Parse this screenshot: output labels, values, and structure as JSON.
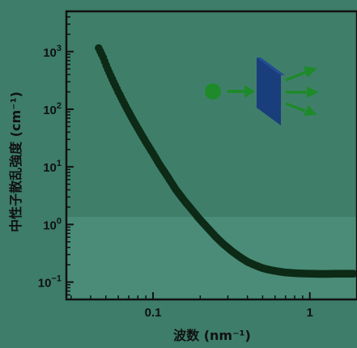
{
  "chart_data": {
    "type": "scatter",
    "title": "",
    "xlabel": "波数 (nm⁻¹)",
    "ylabel": "中性子散乱強度 (cm⁻¹)",
    "x_scale": "log",
    "y_scale": "log",
    "xlim": [
      0.028,
      2.0
    ],
    "ylim": [
      0.05,
      5000
    ],
    "x_ticks": [
      {
        "value": 0.1,
        "label": "0.1"
      },
      {
        "value": 1,
        "label": "1"
      }
    ],
    "y_ticks": [
      {
        "value": 0.1,
        "base": "10",
        "exp": "−1"
      },
      {
        "value": 1,
        "base": "10",
        "exp": "0"
      },
      {
        "value": 10,
        "base": "10",
        "exp": "1"
      },
      {
        "value": 100,
        "base": "10",
        "exp": "2"
      },
      {
        "value": 1000,
        "base": "10",
        "exp": "3"
      }
    ],
    "grid": false,
    "marker_color": "#0d2a17",
    "series": [
      {
        "x": [
          0.045,
          0.048,
          0.051,
          0.055,
          0.06,
          0.066,
          0.073,
          0.081,
          0.09,
          0.1,
          0.11,
          0.125,
          0.14,
          0.16,
          0.18,
          0.2,
          0.225,
          0.25,
          0.28,
          0.32,
          0.36,
          0.4,
          0.45,
          0.5,
          0.56,
          0.63,
          0.7,
          0.8,
          0.9,
          1.0,
          1.15,
          1.3,
          1.5,
          1.7,
          1.9
        ],
        "y": [
          1150,
          800,
          520,
          330,
          200,
          120,
          72,
          44,
          27,
          17,
          11,
          6.5,
          4.0,
          2.5,
          1.7,
          1.2,
          0.85,
          0.62,
          0.46,
          0.34,
          0.27,
          0.225,
          0.195,
          0.175,
          0.162,
          0.153,
          0.147,
          0.143,
          0.141,
          0.14,
          0.139,
          0.139,
          0.14,
          0.14,
          0.14
        ]
      }
    ]
  },
  "inset": {
    "particle_color": "#1e8a2a",
    "arrow_color": "#1e8a2a",
    "sample_color": "#1a3d7c"
  },
  "colors": {
    "background": "#3d7d69",
    "plot_upper": "#3f7f6a",
    "plot_lower": "#4a8c78"
  }
}
